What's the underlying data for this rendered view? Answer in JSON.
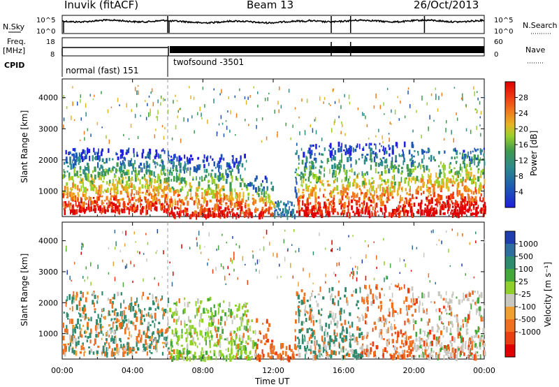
{
  "header": {
    "station": "Inuvik (fitACF)",
    "beam": "Beam 13",
    "date": "26/Oct/2013"
  },
  "left_labels": {
    "nsky": "N.Sky",
    "freq": "Freq.",
    "freq_unit": "[MHz]",
    "cpid": "CPID"
  },
  "right_labels": {
    "nsearch": "N.Search",
    "nave": "Nave"
  },
  "cpid_modes": [
    "normal (fast) 151",
    "twofsound -3501"
  ],
  "colors": {
    "power": [
      "#1f1fdc",
      "#1d57b5",
      "#2e8b8b",
      "#3f9a4e",
      "#9ad12a",
      "#e8b422",
      "#f07c1c",
      "#ee3a12",
      "#e00000"
    ],
    "velocity": [
      "#1f3fb0",
      "#2e6fa0",
      "#2e8b6e",
      "#45a83a",
      "#8fd12a",
      "#c8c8c0",
      "#f0a030",
      "#f07020",
      "#e84010",
      "#e00000"
    ]
  },
  "chart_data": [
    {
      "type": "line",
      "series": [
        {
          "name": "N.Sky",
          "values_approx": "10^4"
        },
        {
          "name": "N.Search",
          "values_approx": "10^4"
        }
      ],
      "ylabel_left": "N.Sky",
      "ylabel_right": "N.Search",
      "yticks_left": [
        "10^5",
        "10^0"
      ],
      "yticks_right": [
        "10^5",
        "10^0"
      ]
    },
    {
      "type": "line",
      "series": [
        {
          "name": "Freq",
          "values": [
            12,
            12,
            12
          ]
        },
        {
          "name": "Nave"
        }
      ],
      "ylabel_left": "Freq. [MHz]",
      "ylabel_right": "Nave",
      "yticks_left": [
        "18",
        "8"
      ],
      "yticks_right": [
        "60",
        "0"
      ],
      "cpid_segments": [
        {
          "label": "normal (fast) 151",
          "start": "00:00",
          "end": "06:00"
        },
        {
          "label": "twofsound -3501",
          "start": "06:00",
          "end": "24:00"
        }
      ]
    },
    {
      "type": "heatmap",
      "ylabel": "Slant Range [km]",
      "yticks": [
        "1000",
        "2000",
        "3000",
        "4000"
      ],
      "colorbar_label": "Power [dB]",
      "colorbar_ticks": [
        "4",
        "8",
        "12",
        "16",
        "20",
        "24",
        "28"
      ]
    },
    {
      "type": "heatmap",
      "ylabel": "Slant Range [km]",
      "yticks": [
        "1000",
        "2000",
        "3000",
        "4000"
      ],
      "xlabel": "Time UT",
      "xticks": [
        "00:00",
        "04:00",
        "08:00",
        "12:00",
        "16:00",
        "20:00",
        "00:00"
      ],
      "colorbar_label": "Velocity [m s⁻¹]",
      "colorbar_ticks": [
        "1000",
        "500",
        "100",
        "25",
        "-25",
        "-100",
        "-500",
        "-1000"
      ]
    }
  ]
}
